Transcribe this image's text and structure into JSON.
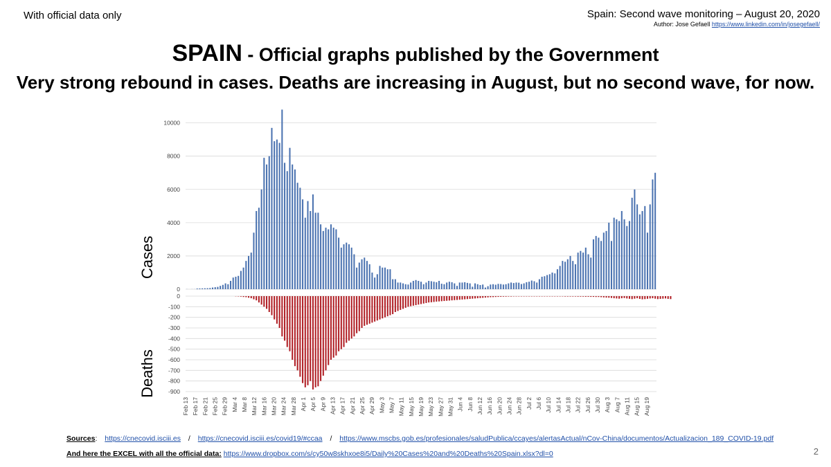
{
  "header": {
    "top_left": "With official data only",
    "top_right": "Spain:  Second wave monitoring – August 20, 2020",
    "author_label": "Author: Jose Gefaell",
    "author_link": "https://www.linkedin.com/in/josegefaell/"
  },
  "headline": {
    "country": "SPAIN",
    "rest": " - Official graphs published by the Government",
    "subtitle": "Very strong rebound in cases. Deaths are increasing in August, but no second wave, for now."
  },
  "chart_data": {
    "type": "bar",
    "x_tick_labels": [
      "Feb 13",
      "Feb 17",
      "Feb 21",
      "Feb 25",
      "Feb 29",
      "Mar 4",
      "Mar 8",
      "Mar 12",
      "Mar 16",
      "Mar 20",
      "Mar 24",
      "Mar 28",
      "Apr 1",
      "Apr 5",
      "Apr 9",
      "Apr 13",
      "Apr 17",
      "Apr 21",
      "Apr 25",
      "Apr 29",
      "May 3",
      "May 7",
      "May 11",
      "May 15",
      "May 19",
      "May 23",
      "May 27",
      "May 31",
      "Jun 4",
      "Jun 8",
      "Jun 12",
      "Jun 16",
      "Jun 20",
      "Jun 24",
      "Jun 28",
      "Jul 2",
      "Jul 6",
      "Jul 10",
      "Jul 14",
      "Jul 18",
      "Jul 22",
      "Jul 26",
      "Jul 30",
      "Aug 3",
      "Aug 7",
      "Aug 11",
      "Aug 15",
      "Aug 19"
    ],
    "cases": {
      "ylabel": "Cases",
      "ylim": [
        0,
        10900
      ],
      "ticks": [
        0,
        2000,
        4000,
        6000,
        8000,
        10000
      ],
      "color": "#4a72b0",
      "values": [
        5,
        0,
        5,
        5,
        40,
        45,
        50,
        55,
        60,
        70,
        100,
        120,
        140,
        200,
        260,
        350,
        300,
        500,
        700,
        750,
        800,
        1100,
        1300,
        1700,
        2000,
        2200,
        3400,
        4700,
        4900,
        6000,
        7900,
        7500,
        8000,
        9700,
        8900,
        9000,
        8800,
        10800,
        7600,
        7100,
        8500,
        7500,
        7200,
        6400,
        6100,
        5400,
        4300,
        5300,
        4700,
        5700,
        4600,
        4600,
        3900,
        3500,
        3700,
        3600,
        3900,
        3700,
        3600,
        3100,
        2500,
        2700,
        2800,
        2700,
        2500,
        2100,
        1300,
        1600,
        1800,
        1900,
        1700,
        1500,
        1000,
        700,
        900,
        1400,
        1300,
        1300,
        1200,
        1200,
        600,
        600,
        400,
        400,
        350,
        300,
        280,
        400,
        500,
        550,
        500,
        450,
        300,
        400,
        500,
        480,
        450,
        420,
        500,
        330,
        300,
        400,
        450,
        420,
        350,
        200,
        400,
        400,
        420,
        380,
        350,
        150,
        350,
        300,
        250,
        280,
        100,
        180,
        280,
        300,
        270,
        320,
        310,
        280,
        300,
        350,
        400,
        370,
        400,
        390,
        310,
        350,
        420,
        450,
        520,
        480,
        400,
        600,
        750,
        780,
        850,
        900,
        1000,
        950,
        1200,
        1400,
        1700,
        1650,
        1800,
        2000,
        1700,
        1500,
        2200,
        2300,
        2200,
        2500,
        2100,
        1900,
        3000,
        3200,
        3100,
        2900,
        3400,
        3500,
        4000,
        2900,
        4300,
        4200,
        4100,
        4700,
        4200,
        3800,
        4100,
        5500,
        6000,
        5100,
        4500,
        4700,
        5000,
        3400,
        5100,
        6600,
        7000
      ]
    },
    "deaths": {
      "ylabel": "Deaths",
      "ylim": [
        -900,
        0
      ],
      "ticks": [
        0,
        -100,
        -200,
        -300,
        -400,
        -500,
        -600,
        -700,
        -800,
        -900
      ],
      "color": "#b01e24",
      "values": [
        0,
        0,
        0,
        0,
        0,
        0,
        0,
        0,
        0,
        0,
        0,
        0,
        0,
        0,
        0,
        0,
        0,
        0,
        0,
        -2,
        -3,
        -5,
        -8,
        -10,
        -15,
        -20,
        -30,
        -40,
        -60,
        -80,
        -100,
        -120,
        -150,
        -180,
        -220,
        -260,
        -300,
        -380,
        -420,
        -480,
        -520,
        -600,
        -660,
        -700,
        -760,
        -820,
        -860,
        -840,
        -800,
        -880,
        -860,
        -850,
        -800,
        -750,
        -700,
        -650,
        -600,
        -580,
        -560,
        -520,
        -500,
        -480,
        -440,
        -420,
        -400,
        -380,
        -350,
        -330,
        -300,
        -280,
        -270,
        -260,
        -250,
        -240,
        -230,
        -220,
        -210,
        -200,
        -190,
        -180,
        -170,
        -150,
        -140,
        -130,
        -120,
        -110,
        -100,
        -95,
        -90,
        -85,
        -80,
        -75,
        -70,
        -65,
        -60,
        -58,
        -55,
        -52,
        -50,
        -48,
        -46,
        -44,
        -42,
        -40,
        -38,
        -36,
        -34,
        -32,
        -30,
        -28,
        -26,
        -24,
        -22,
        -20,
        -18,
        -16,
        -14,
        -12,
        -10,
        -9,
        -8,
        -7,
        -6,
        -5,
        -5,
        -4,
        -4,
        -3,
        -3,
        -3,
        -3,
        -3,
        -3,
        -3,
        -3,
        -3,
        -3,
        -3,
        -3,
        -3,
        -3,
        -3,
        -3,
        -3,
        -3,
        -3,
        -3,
        -4,
        -4,
        -4,
        -4,
        -4,
        -5,
        -5,
        -5,
        -6,
        -6,
        -7,
        -7,
        -8,
        -8,
        -10,
        -12,
        -14,
        -15,
        -17,
        -20,
        -22,
        -24,
        -20,
        -18,
        -22,
        -25,
        -28,
        -24,
        -20,
        -26,
        -30,
        -28,
        -25,
        -22,
        -20,
        -24,
        -28,
        -26,
        -24,
        -22,
        -26,
        -28
      ]
    }
  },
  "footer": {
    "sources_label": "Sources",
    "sources_colon": ":",
    "source_1": "https://cnecovid.isciii.es",
    "source_2": "https://cnecovid.isciii.es/covid19/#ccaa",
    "source_3": "https://www.mscbs.gob.es/profesionales/saludPublica/ccayes/alertasActual/nCov-China/documentos/Actualizacion_189_COVID-19.pdf",
    "separator": "/",
    "excel_label": "And here the EXCEL with all the official data:",
    "excel_link": "https://www.dropbox.com/s/cy50w8skhxoe8i5/Daily%20Cases%20and%20Deaths%20Spain.xlsx?dl=0",
    "page_number": "2"
  }
}
